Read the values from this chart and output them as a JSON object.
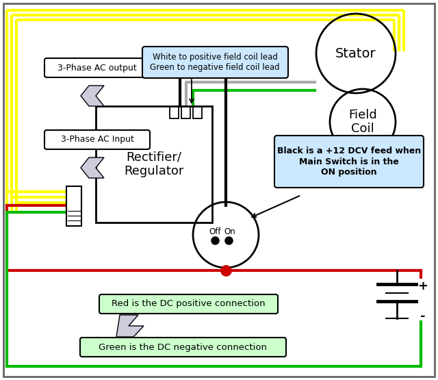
{
  "bg_color": "#ffffff",
  "YEL": "#ffff00",
  "GRN": "#00bb00",
  "RED": "#cc0000",
  "BLK": "#000000",
  "GRAY": "#aaaaaa",
  "callout_fill": "#cce8ff",
  "label_fill": "#ccffcc",
  "labels": {
    "stator": "Stator",
    "field_coil": "Field\nCoil",
    "rectifier": "Rectifier/\nRegulator",
    "ac_output": "3-Phase AC output",
    "ac_input": "3-Phase AC Input",
    "white_green": "White to positive field coil lead\nGreen to negative field coil lead",
    "black_info": "Black is a +12 DCV feed when\nMain Switch is in the\nON position",
    "red_info": "Red is the DC positive connection",
    "green_info": "Green is the DC negative connection",
    "off": "Off",
    "on": "On",
    "plus": "+",
    "minus": "-"
  }
}
